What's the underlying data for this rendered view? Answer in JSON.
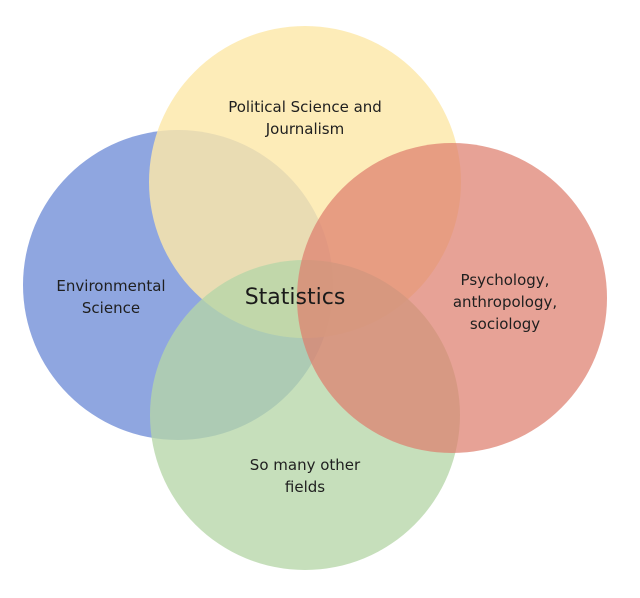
{
  "diagram": {
    "circles": [
      {
        "id": "political",
        "label": "Political Science and\nJournalism",
        "color": "#fde8a8"
      },
      {
        "id": "environmental",
        "label": "Environmental\nScience",
        "color": "#8fa6e0"
      },
      {
        "id": "psychology",
        "label": "Psychology,\nanthropology,\nsociology",
        "color": "#de7e6e"
      },
      {
        "id": "other",
        "label": "So many other\nfields",
        "color": "#b6d6a8"
      }
    ],
    "center_label": "Statistics"
  }
}
